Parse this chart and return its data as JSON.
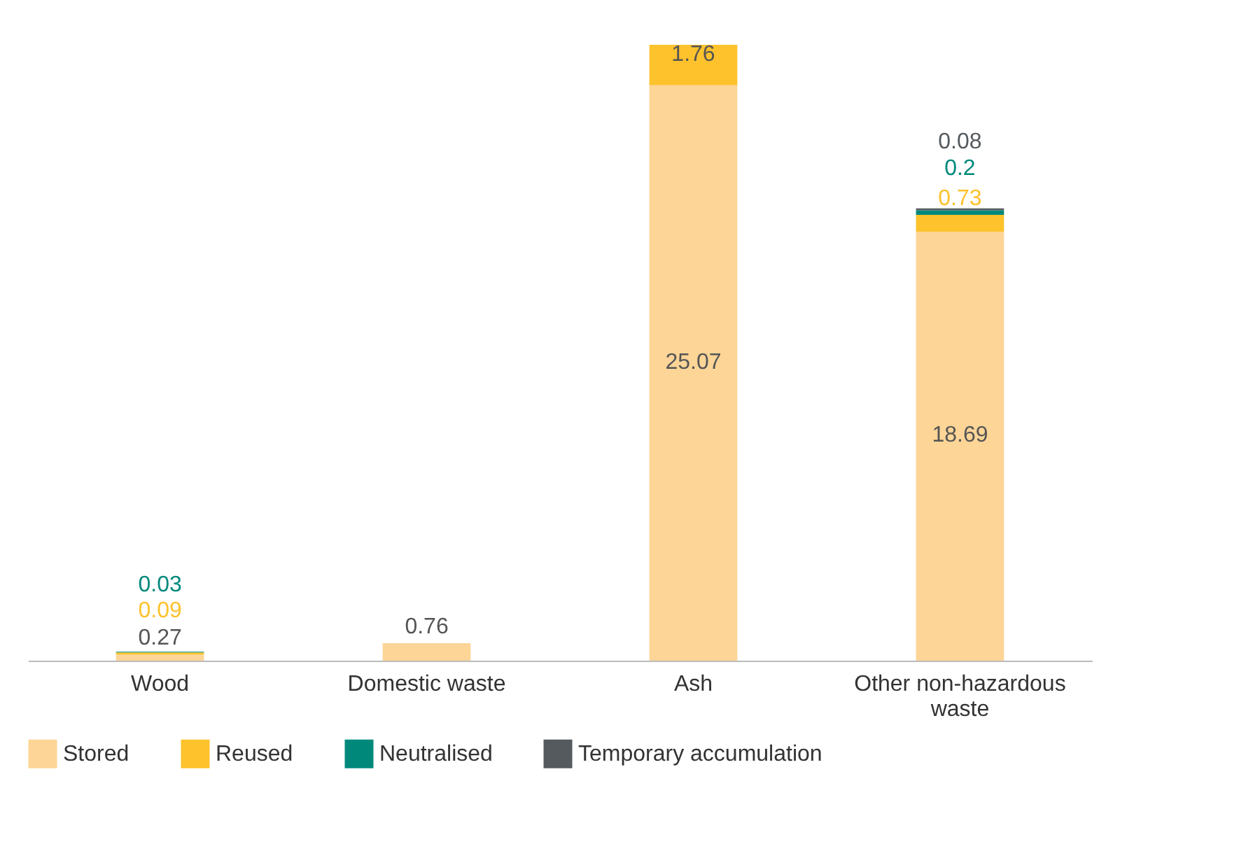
{
  "chart_data": {
    "type": "bar",
    "stacked": true,
    "data_labels": true,
    "legend": "bottom",
    "categories": [
      "Wood",
      "Domestic waste",
      "Ash",
      "Other non-hazardous waste"
    ],
    "series": [
      {
        "name": "Stored",
        "color": "#fdd597",
        "values": [
          0.27,
          0.76,
          25.07,
          18.69
        ]
      },
      {
        "name": "Reused",
        "color": "#fdc22c",
        "values": [
          0.09,
          null,
          1.76,
          0.73
        ]
      },
      {
        "name": "Neutralised",
        "color": "#00897b",
        "values": [
          0.03,
          null,
          null,
          0.2
        ]
      },
      {
        "name": "Temporary accumulation",
        "color": "#555a5e",
        "values": [
          null,
          null,
          null,
          0.08
        ]
      }
    ]
  }
}
